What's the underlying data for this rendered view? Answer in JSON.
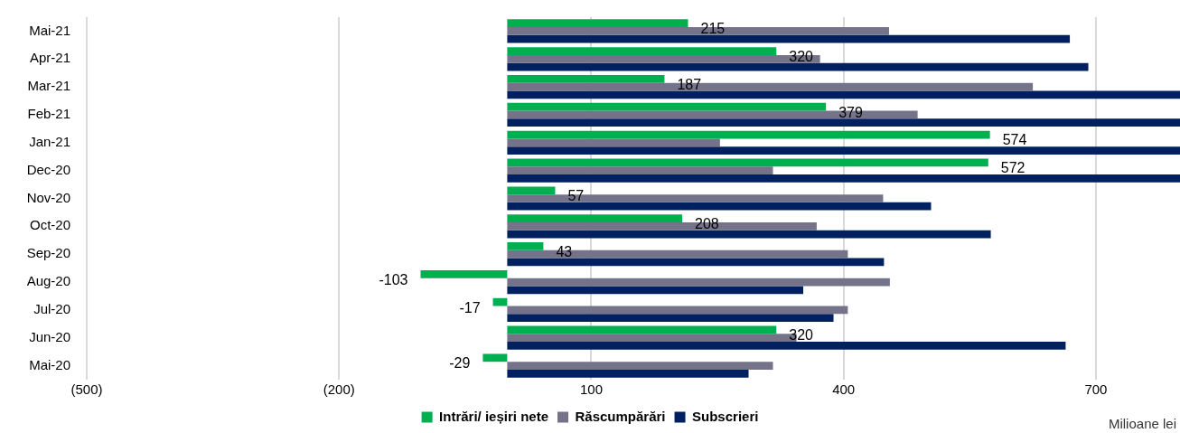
{
  "chart_data": {
    "type": "bar",
    "orientation": "horizontal",
    "categories": [
      "Mai-21",
      "Apr-21",
      "Mar-21",
      "Feb-21",
      "Jan-21",
      "Dec-20",
      "Nov-20",
      "Oct-20",
      "Sep-20",
      "Aug-20",
      "Jul-20",
      "Jun-20",
      "Mai-20"
    ],
    "series": [
      {
        "name": "Intrări/ ieșiri nete",
        "color": "#00b050",
        "values": [
          215,
          320,
          187,
          379,
          574,
          572,
          57,
          208,
          43,
          -103,
          -17,
          320,
          -29
        ],
        "value_labels": [
          "215",
          "320",
          "187",
          "379",
          "574",
          "572",
          "57",
          "208",
          "43",
          "-103",
          "-17",
          "320",
          "-29"
        ]
      },
      {
        "name": "Răscumpărări",
        "color": "#75738a",
        "values": [
          454,
          372,
          625,
          488,
          253,
          316,
          447,
          368,
          405,
          455,
          405,
          344,
          316
        ]
      },
      {
        "name": "Subscrieri",
        "color": "#002060",
        "values": [
          669,
          691,
          800,
          800,
          800,
          800,
          504,
          575,
          448,
          352,
          388,
          664,
          287
        ]
      }
    ],
    "xlim": [
      -500,
      800
    ],
    "xticks": [
      {
        "value": -500,
        "label": "(500)"
      },
      {
        "value": -200,
        "label": "(200)"
      },
      100,
      400,
      700
    ],
    "grid": "x",
    "legend": "bottom",
    "annotations": [
      "Milioane lei"
    ]
  }
}
